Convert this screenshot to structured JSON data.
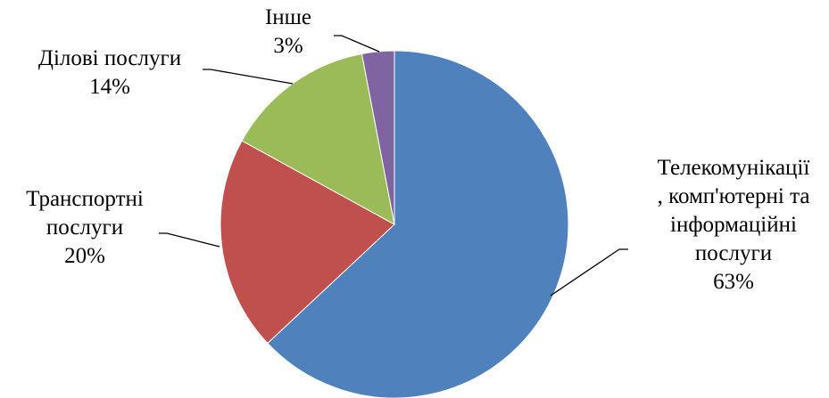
{
  "chart_data": {
    "type": "pie",
    "title": "",
    "start_angle_deg": 0,
    "direction": "clockwise",
    "slices": [
      {
        "label_lines": [
          "Телекомунікації",
          ", комп'ютерні та",
          "інформаційні",
          "послуги"
        ],
        "pct_label": "63%",
        "value": 63,
        "color": "#4F81BD"
      },
      {
        "label_lines": [
          "Транспортні",
          "послуги"
        ],
        "pct_label": "20%",
        "value": 20,
        "color": "#C0504D"
      },
      {
        "label_lines": [
          "Ділові послуги"
        ],
        "pct_label": "14%",
        "value": 14,
        "color": "#9BBB59"
      },
      {
        "label_lines": [
          "Інше"
        ],
        "pct_label": "3%",
        "value": 3,
        "color": "#8064A2"
      }
    ]
  }
}
